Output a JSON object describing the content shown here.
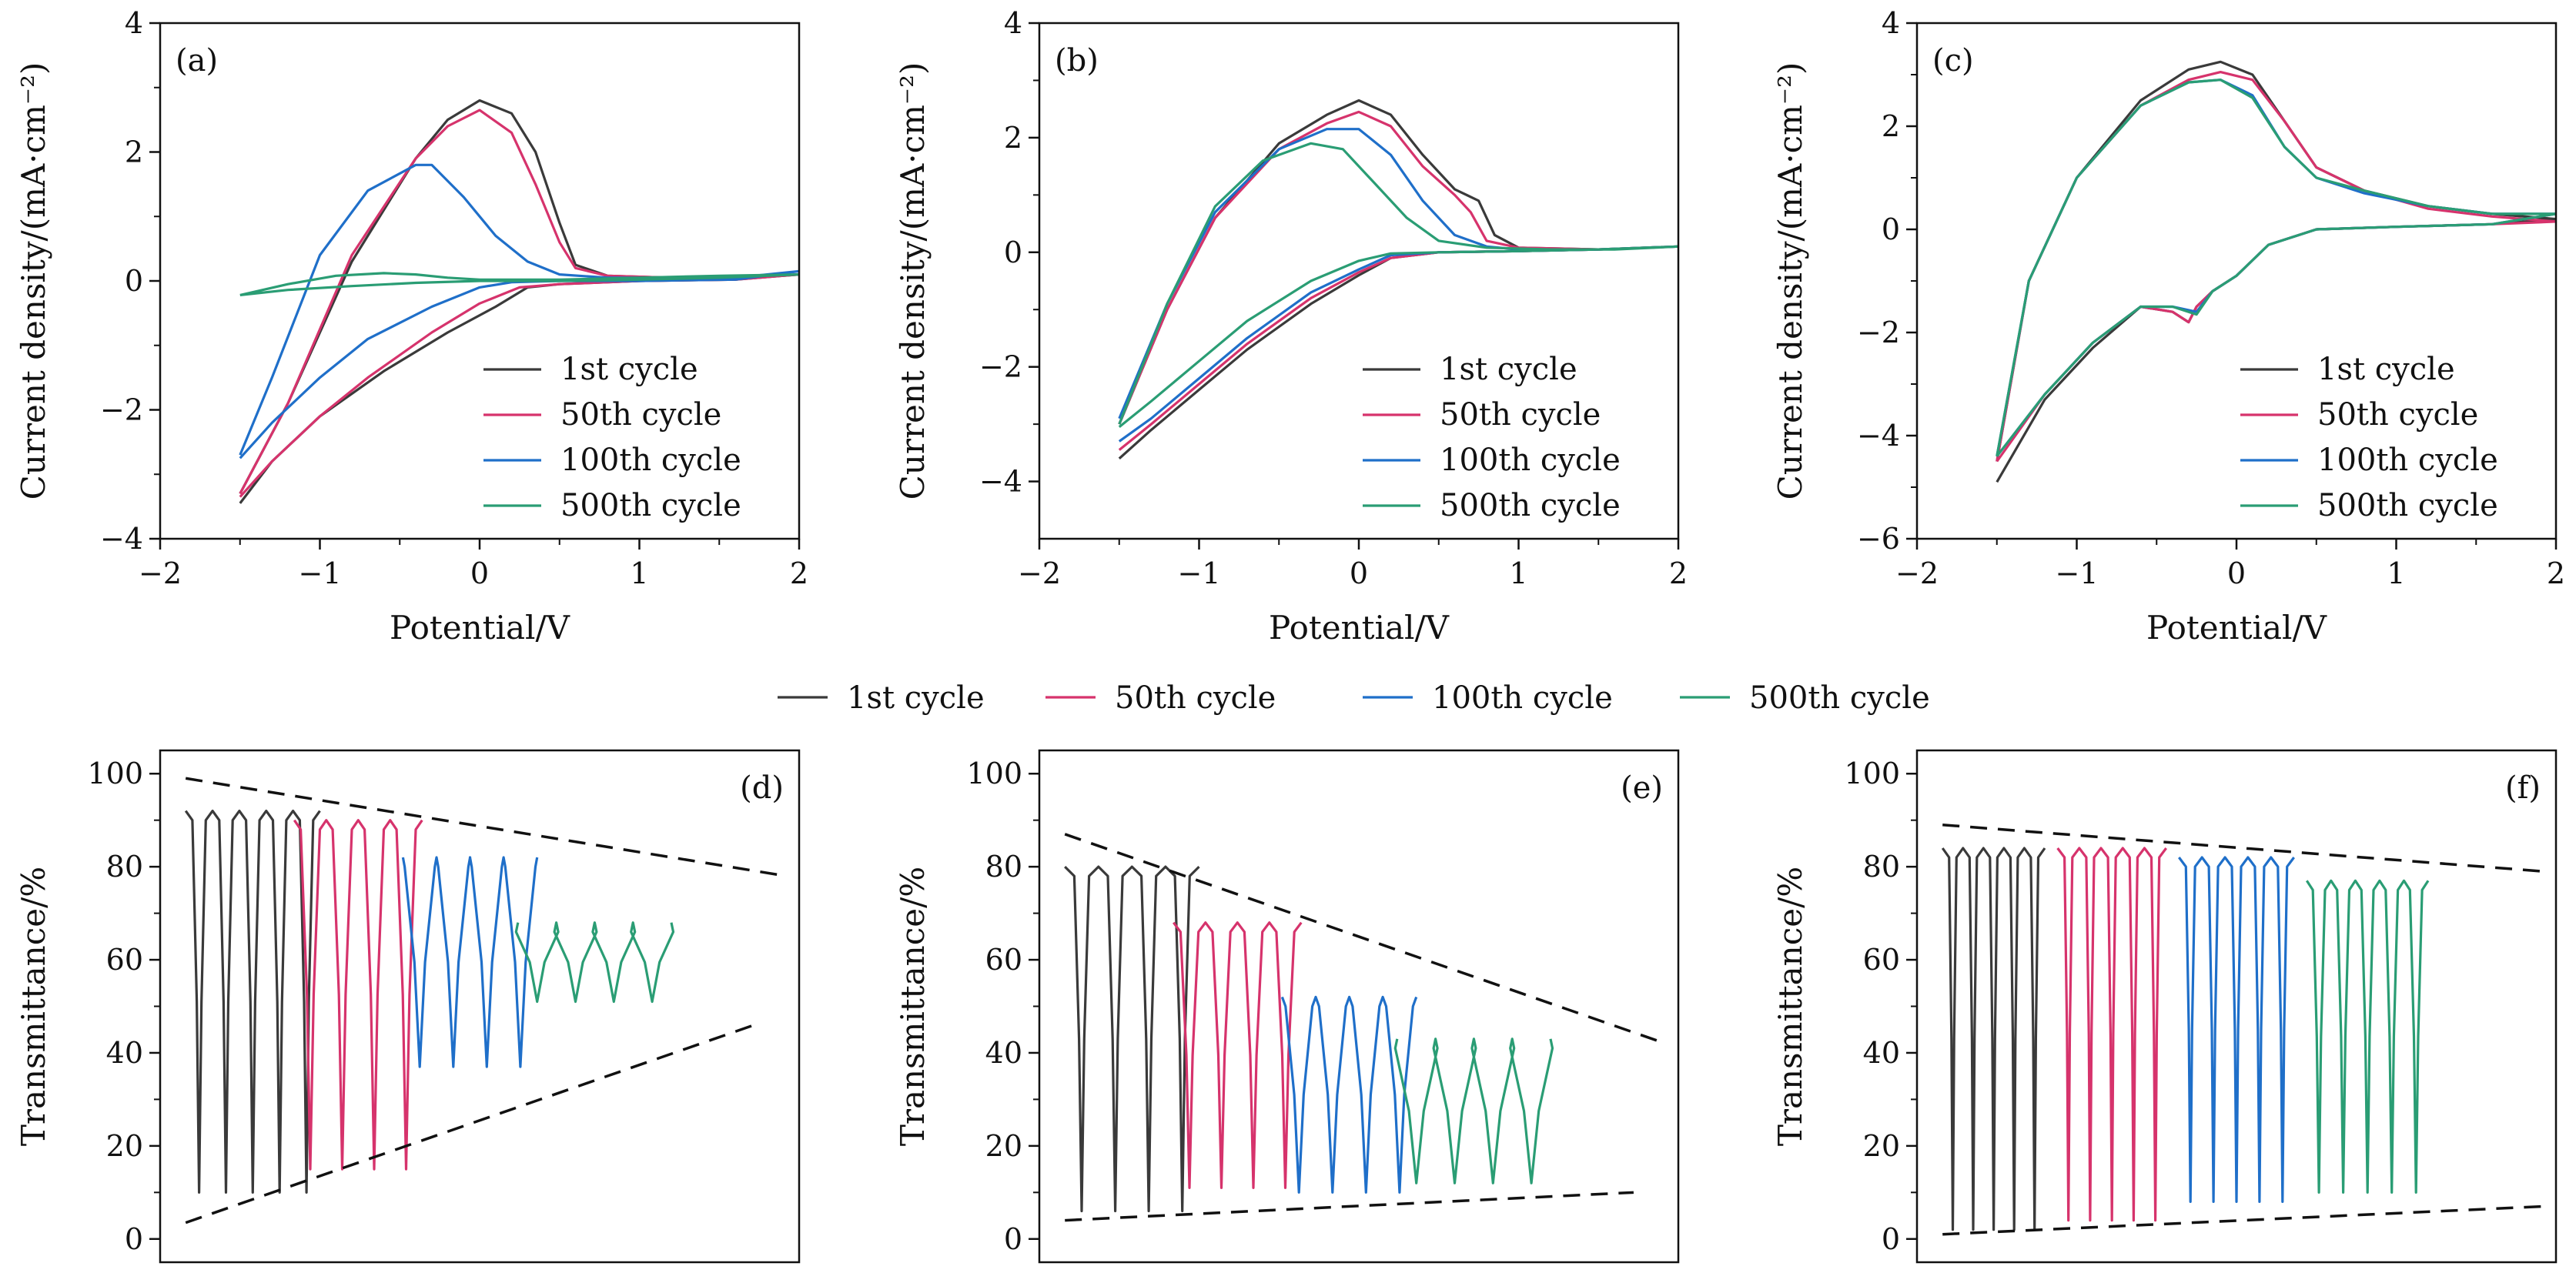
{
  "legend": {
    "entries": [
      {
        "label": "1st cycle",
        "color": "#3a3a3a"
      },
      {
        "label": "50th cycle",
        "color": "#d6336c"
      },
      {
        "label": "100th cycle",
        "color": "#1f6fc9"
      },
      {
        "label": "500th cycle",
        "color": "#2a9d74"
      }
    ]
  },
  "chart_data": [
    {
      "type": "line",
      "panel": "(a)",
      "xlabel": "Potential/V",
      "ylabel": "Current density/(mA·cm⁻²)",
      "xlim": [
        -2,
        2
      ],
      "ylim": [
        -4,
        4
      ],
      "xticks": [
        -2,
        -1,
        0,
        1,
        2
      ],
      "yticks": [
        -4,
        -2,
        0,
        2,
        4
      ],
      "tick_labels_x": [
        "−2",
        "−1",
        "0",
        "1",
        "2"
      ],
      "tick_labels_y": [
        "−4",
        "−2",
        "0",
        "2",
        "4"
      ],
      "legend_position": "lower-right",
      "series": [
        {
          "name": "1st cycle",
          "x": [
            -1.5,
            -1.2,
            -0.8,
            -0.4,
            -0.2,
            0,
            0.2,
            0.35,
            0.5,
            0.6,
            0.8,
            1.2,
            1.6,
            2,
            1.6,
            1.0,
            0.5,
            0.3,
            0.1,
            -0.2,
            -0.6,
            -1.0,
            -1.3,
            -1.5
          ],
          "y": [
            -3.3,
            -1.9,
            0.3,
            1.9,
            2.5,
            2.8,
            2.6,
            2.0,
            0.9,
            0.25,
            0.08,
            0.05,
            0.05,
            0.1,
            0.02,
            0,
            -0.05,
            -0.1,
            -0.4,
            -0.8,
            -1.4,
            -2.1,
            -2.8,
            -3.45
          ]
        },
        {
          "name": "50th cycle",
          "x": [
            -1.5,
            -1.2,
            -0.8,
            -0.4,
            -0.2,
            0,
            0.2,
            0.35,
            0.5,
            0.6,
            0.8,
            1.2,
            1.6,
            2,
            1.6,
            1.0,
            0.5,
            0.25,
            0.0,
            -0.3,
            -0.7,
            -1.0,
            -1.3,
            -1.5
          ],
          "y": [
            -3.3,
            -1.9,
            0.4,
            1.9,
            2.4,
            2.65,
            2.3,
            1.5,
            0.6,
            0.2,
            0.08,
            0.05,
            0.05,
            0.1,
            0.02,
            0,
            -0.05,
            -0.1,
            -0.35,
            -0.8,
            -1.5,
            -2.1,
            -2.8,
            -3.35
          ]
        },
        {
          "name": "100th cycle",
          "x": [
            -1.5,
            -1.3,
            -1.0,
            -0.7,
            -0.4,
            -0.3,
            -0.1,
            0.1,
            0.3,
            0.5,
            0.8,
            1.2,
            1.6,
            2,
            1.6,
            1.0,
            0.5,
            0.2,
            0.0,
            -0.3,
            -0.7,
            -1.0,
            -1.3,
            -1.5
          ],
          "y": [
            -2.7,
            -1.5,
            0.4,
            1.4,
            1.8,
            1.8,
            1.3,
            0.7,
            0.3,
            0.1,
            0.05,
            0.05,
            0.05,
            0.15,
            0.02,
            0,
            0,
            -0.02,
            -0.1,
            -0.4,
            -0.9,
            -1.5,
            -2.2,
            -2.75
          ]
        },
        {
          "name": "500th cycle",
          "x": [
            -1.5,
            -1.2,
            -0.9,
            -0.6,
            -0.4,
            -0.2,
            0,
            0.5,
            1,
            1.5,
            2,
            1.5,
            1,
            0.5,
            0,
            -0.4,
            -0.8,
            -1.2,
            -1.5
          ],
          "y": [
            -0.22,
            -0.05,
            0.08,
            0.12,
            0.1,
            0.05,
            0.02,
            0.02,
            0.05,
            0.08,
            0.1,
            0.05,
            0.02,
            0,
            0,
            -0.03,
            -0.08,
            -0.14,
            -0.22
          ]
        }
      ]
    },
    {
      "type": "line",
      "panel": "(b)",
      "xlabel": "Potential/V",
      "ylabel": "Current density/(mA·cm⁻²)",
      "xlim": [
        -2,
        2
      ],
      "ylim": [
        -5,
        4
      ],
      "xticks": [
        -2,
        -1,
        0,
        1,
        2
      ],
      "yticks": [
        -4,
        -2,
        0,
        2,
        4
      ],
      "tick_labels_x": [
        "−2",
        "−1",
        "0",
        "1",
        "2"
      ],
      "tick_labels_y": [
        "−4",
        "−2",
        "0",
        "2",
        "4"
      ],
      "legend_position": "lower-right",
      "series": [
        {
          "name": "1st cycle",
          "x": [
            -1.5,
            -1.2,
            -0.9,
            -0.5,
            -0.2,
            0,
            0.2,
            0.4,
            0.6,
            0.75,
            0.85,
            1.0,
            1.5,
            2,
            1.5,
            1.0,
            0.5,
            0.2,
            0,
            -0.3,
            -0.7,
            -1.0,
            -1.3,
            -1.5
          ],
          "y": [
            -3.0,
            -1.0,
            0.6,
            1.9,
            2.4,
            2.65,
            2.4,
            1.7,
            1.1,
            0.9,
            0.3,
            0.08,
            0.05,
            0.1,
            0.05,
            0.02,
            0,
            -0.1,
            -0.4,
            -0.9,
            -1.7,
            -2.4,
            -3.1,
            -3.6
          ]
        },
        {
          "name": "50th cycle",
          "x": [
            -1.5,
            -1.2,
            -0.9,
            -0.5,
            -0.2,
            0,
            0.2,
            0.4,
            0.6,
            0.7,
            0.8,
            1.0,
            1.5,
            2,
            1.5,
            1.0,
            0.5,
            0.2,
            0,
            -0.3,
            -0.7,
            -1.0,
            -1.3,
            -1.5
          ],
          "y": [
            -3.0,
            -1.0,
            0.6,
            1.8,
            2.25,
            2.45,
            2.2,
            1.5,
            1.0,
            0.7,
            0.2,
            0.08,
            0.05,
            0.1,
            0.05,
            0.02,
            0,
            -0.1,
            -0.35,
            -0.8,
            -1.6,
            -2.3,
            -3.0,
            -3.45
          ]
        },
        {
          "name": "100th cycle",
          "x": [
            -1.5,
            -1.2,
            -0.9,
            -0.5,
            -0.2,
            0,
            0.2,
            0.4,
            0.6,
            0.8,
            1.0,
            1.5,
            2,
            1.5,
            1.0,
            0.5,
            0.2,
            0,
            -0.3,
            -0.7,
            -1.0,
            -1.3,
            -1.5
          ],
          "y": [
            -2.9,
            -0.9,
            0.7,
            1.8,
            2.15,
            2.15,
            1.7,
            0.9,
            0.3,
            0.1,
            0.05,
            0.05,
            0.1,
            0.05,
            0.02,
            0,
            -0.05,
            -0.3,
            -0.7,
            -1.5,
            -2.2,
            -2.9,
            -3.3
          ]
        },
        {
          "name": "500th cycle",
          "x": [
            -1.5,
            -1.2,
            -0.9,
            -0.6,
            -0.3,
            -0.1,
            0.1,
            0.3,
            0.5,
            0.8,
            1.2,
            1.6,
            2,
            1.5,
            1.0,
            0.5,
            0.2,
            0,
            -0.3,
            -0.7,
            -1.0,
            -1.3,
            -1.5
          ],
          "y": [
            -3.0,
            -0.9,
            0.8,
            1.6,
            1.9,
            1.8,
            1.2,
            0.6,
            0.2,
            0.08,
            0.05,
            0.05,
            0.1,
            0.05,
            0.02,
            0,
            -0.02,
            -0.15,
            -0.5,
            -1.2,
            -1.9,
            -2.6,
            -3.05
          ]
        }
      ]
    },
    {
      "type": "line",
      "panel": "(c)",
      "xlabel": "Potential/V",
      "ylabel": "Current density/(mA·cm⁻²)",
      "xlim": [
        -2,
        2
      ],
      "ylim": [
        -6,
        4
      ],
      "xticks": [
        -2,
        -1,
        0,
        1,
        2
      ],
      "yticks": [
        -6,
        -4,
        -2,
        0,
        2,
        4
      ],
      "tick_labels_x": [
        "−2",
        "−1",
        "0",
        "1",
        "2"
      ],
      "tick_labels_y": [
        "−6",
        "−4",
        "−2",
        "0",
        "2",
        "4"
      ],
      "legend_position": "lower-right",
      "series": [
        {
          "name": "1st cycle",
          "x": [
            -1.5,
            -1.3,
            -1.0,
            -0.6,
            -0.3,
            -0.1,
            0.1,
            0.3,
            0.5,
            0.8,
            1.2,
            1.6,
            2,
            1.6,
            1.0,
            0.5,
            0.2,
            0,
            -0.15,
            -0.25,
            -0.3,
            -0.4,
            -0.6,
            -0.9,
            -1.2,
            -1.5
          ],
          "y": [
            -4.5,
            -1.0,
            1.0,
            2.5,
            3.1,
            3.25,
            3.0,
            2.1,
            1.2,
            0.75,
            0.45,
            0.3,
            0.2,
            0.1,
            0.05,
            0,
            -0.3,
            -0.9,
            -1.2,
            -1.5,
            -1.8,
            -1.6,
            -1.5,
            -2.3,
            -3.3,
            -4.9
          ]
        },
        {
          "name": "50th cycle",
          "x": [
            -1.5,
            -1.3,
            -1.0,
            -0.6,
            -0.3,
            -0.1,
            0.1,
            0.3,
            0.5,
            0.8,
            1.2,
            1.6,
            2,
            1.6,
            1.0,
            0.5,
            0.2,
            0,
            -0.15,
            -0.25,
            -0.3,
            -0.4,
            -0.6,
            -0.9,
            -1.2,
            -1.5
          ],
          "y": [
            -4.5,
            -1.0,
            1.0,
            2.4,
            2.9,
            3.05,
            2.9,
            2.1,
            1.2,
            0.75,
            0.4,
            0.25,
            0.15,
            0.1,
            0.05,
            0,
            -0.3,
            -0.9,
            -1.2,
            -1.5,
            -1.8,
            -1.6,
            -1.5,
            -2.2,
            -3.2,
            -4.5
          ]
        },
        {
          "name": "100th cycle",
          "x": [
            -1.5,
            -1.3,
            -1.0,
            -0.6,
            -0.3,
            -0.1,
            0.1,
            0.3,
            0.5,
            0.8,
            1.2,
            1.6,
            2,
            1.6,
            1.0,
            0.5,
            0.2,
            0,
            -0.15,
            -0.25,
            -0.4,
            -0.6,
            -0.9,
            -1.2,
            -1.5
          ],
          "y": [
            -4.4,
            -1.0,
            1.0,
            2.4,
            2.85,
            2.9,
            2.6,
            1.6,
            1.0,
            0.7,
            0.45,
            0.3,
            0.3,
            0.1,
            0.05,
            0,
            -0.3,
            -0.9,
            -1.2,
            -1.6,
            -1.5,
            -1.5,
            -2.2,
            -3.2,
            -4.4
          ]
        },
        {
          "name": "500th cycle",
          "x": [
            -1.5,
            -1.3,
            -1.0,
            -0.6,
            -0.3,
            -0.1,
            0.1,
            0.3,
            0.5,
            0.8,
            1.2,
            1.6,
            2,
            1.6,
            1.0,
            0.5,
            0.2,
            0,
            -0.15,
            -0.25,
            -0.4,
            -0.6,
            -0.9,
            -1.2,
            -1.5
          ],
          "y": [
            -4.4,
            -1.0,
            1.0,
            2.4,
            2.85,
            2.9,
            2.55,
            1.6,
            1.0,
            0.75,
            0.45,
            0.3,
            0.3,
            0.1,
            0.05,
            0,
            -0.3,
            -0.9,
            -1.2,
            -1.65,
            -1.5,
            -1.5,
            -2.2,
            -3.2,
            -4.4
          ]
        }
      ]
    },
    {
      "type": "line",
      "panel": "(d)",
      "xlabel": "",
      "ylabel": "Transmittance/%",
      "ylim": [
        -5,
        105
      ],
      "yticks": [
        0,
        20,
        40,
        60,
        80,
        100
      ],
      "tick_labels_y": [
        "0",
        "20",
        "40",
        "60",
        "80",
        "100"
      ],
      "series": [
        {
          "name": "1st cycle",
          "color": "#3a3a3a",
          "max": 92,
          "min": 10,
          "cycles": 5,
          "valley_width": 0.25
        },
        {
          "name": "50th cycle",
          "color": "#d6336c",
          "max": 90,
          "min": 15,
          "cycles": 4,
          "valley_width": 0.3
        },
        {
          "name": "100th cycle",
          "color": "#1f6fc9",
          "max": 82,
          "min": 37,
          "cycles": 4,
          "valley_width": 0.45
        },
        {
          "name": "500th cycle",
          "color": "#2a9d74",
          "max": 68,
          "min": 51,
          "cycles": 4,
          "valley_width": 0.55
        }
      ],
      "envelope": {
        "upper": [
          [
            0.04,
            99
          ],
          [
            0.98,
            78
          ]
        ],
        "lower": [
          [
            0.04,
            3.5
          ],
          [
            0.93,
            46
          ]
        ]
      }
    },
    {
      "type": "line",
      "panel": "(e)",
      "xlabel": "",
      "ylabel": "Transmittance/%",
      "ylim": [
        -5,
        105
      ],
      "yticks": [
        0,
        20,
        40,
        60,
        80,
        100
      ],
      "tick_labels_y": [
        "0",
        "20",
        "40",
        "60",
        "80",
        "100"
      ],
      "series": [
        {
          "name": "1st cycle",
          "color": "#3a3a3a",
          "max": 80,
          "min": 6,
          "cycles": 4,
          "valley_width": 0.22
        },
        {
          "name": "50th cycle",
          "color": "#d6336c",
          "max": 68,
          "min": 11,
          "cycles": 4,
          "valley_width": 0.28
        },
        {
          "name": "100th cycle",
          "color": "#1f6fc9",
          "max": 52,
          "min": 10,
          "cycles": 4,
          "valley_width": 0.4
        },
        {
          "name": "500th cycle",
          "color": "#2a9d74",
          "max": 43,
          "min": 12,
          "cycles": 4,
          "valley_width": 0.55
        }
      ],
      "envelope": {
        "upper": [
          [
            0.04,
            87
          ],
          [
            0.98,
            42
          ]
        ],
        "lower": [
          [
            0.04,
            4
          ],
          [
            0.93,
            10
          ]
        ]
      }
    },
    {
      "type": "line",
      "panel": "(f)",
      "xlabel": "",
      "ylabel": "Transmittance/%",
      "ylim": [
        -5,
        105
      ],
      "yticks": [
        0,
        20,
        40,
        60,
        80,
        100
      ],
      "tick_labels_y": [
        "0",
        "20",
        "40",
        "60",
        "80",
        "100"
      ],
      "series": [
        {
          "name": "1st cycle",
          "color": "#3a3a3a",
          "max": 84,
          "min": 2,
          "cycles": 5,
          "valley_width": 0.18
        },
        {
          "name": "50th cycle",
          "color": "#d6336c",
          "max": 84,
          "min": 4,
          "cycles": 5,
          "valley_width": 0.18
        },
        {
          "name": "100th cycle",
          "color": "#1f6fc9",
          "max": 82,
          "min": 8,
          "cycles": 5,
          "valley_width": 0.2
        },
        {
          "name": "500th cycle",
          "color": "#2a9d74",
          "max": 77,
          "min": 10,
          "cycles": 5,
          "valley_width": 0.25
        }
      ],
      "envelope": {
        "upper": [
          [
            0.04,
            89
          ],
          [
            0.98,
            79
          ]
        ],
        "lower": [
          [
            0.04,
            1
          ],
          [
            0.98,
            7
          ]
        ]
      }
    }
  ]
}
